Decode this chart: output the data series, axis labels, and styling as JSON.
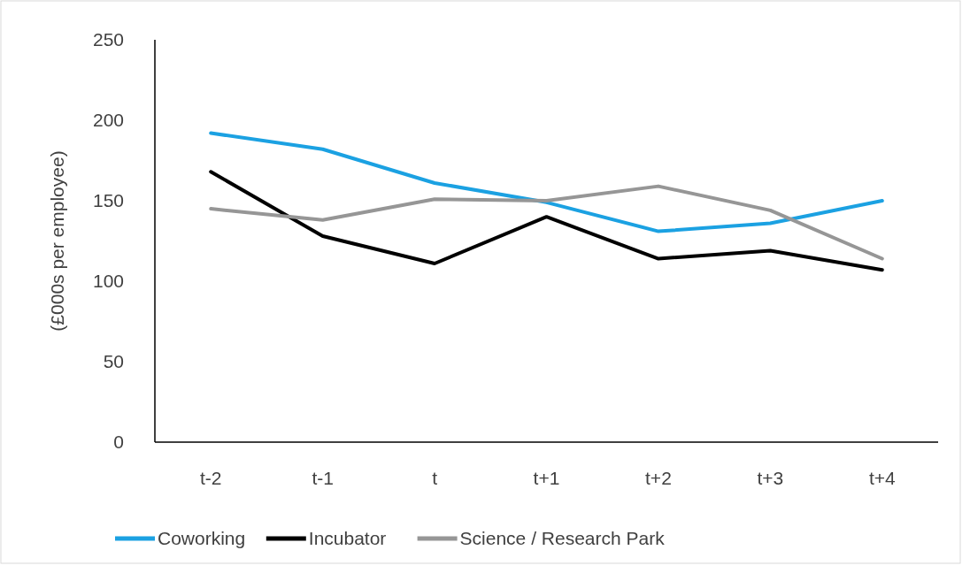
{
  "chart_data": {
    "type": "line",
    "ylabel": "(£000s per employee)",
    "categories": [
      "t-2",
      "t-1",
      "t",
      "t+1",
      "t+2",
      "t+3",
      "t+4"
    ],
    "ylim": [
      0,
      250
    ],
    "yticks": [
      0,
      50,
      100,
      150,
      200,
      250
    ],
    "grid": false,
    "legend": "bottom",
    "marker": "none",
    "line_style": "solid",
    "series": [
      {
        "name": "Coworking",
        "color": "#1ba1e2",
        "values": [
          192,
          182,
          161,
          149,
          131,
          136,
          150
        ]
      },
      {
        "name": "Incubator",
        "color": "#000000",
        "values": [
          168,
          128,
          111,
          140,
          114,
          119,
          107
        ]
      },
      {
        "name": "Science / Research Park",
        "color": "#969696",
        "values": [
          145,
          138,
          151,
          150,
          159,
          144,
          114
        ]
      }
    ]
  }
}
